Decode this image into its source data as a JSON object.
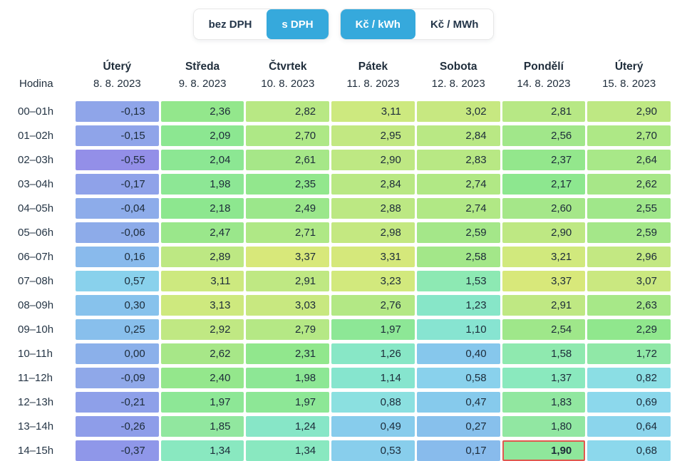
{
  "controls": {
    "vat_toggle": {
      "options": [
        {
          "label": "bez DPH",
          "active": false
        },
        {
          "label": "s DPH",
          "active": true
        }
      ]
    },
    "unit_toggle": {
      "options": [
        {
          "label": "Kč / kWh",
          "active": true
        },
        {
          "label": "Kč / MWh",
          "active": false
        }
      ]
    }
  },
  "colors": {
    "accent": "#36a9dc",
    "text": "#1f2d3b",
    "highlight_border": "#e0584e",
    "scale": [
      [
        -0.55,
        "#938fe8"
      ],
      [
        -0.3,
        "#8e9ae9"
      ],
      [
        -0.1,
        "#8fa7e9"
      ],
      [
        0.0,
        "#8bb0ea"
      ],
      [
        0.2,
        "#88bdec"
      ],
      [
        0.45,
        "#86c9ec"
      ],
      [
        0.7,
        "#8cd9ec"
      ],
      [
        0.9,
        "#8be1df"
      ],
      [
        1.15,
        "#86e5cd"
      ],
      [
        1.4,
        "#8ae9bc"
      ],
      [
        1.6,
        "#8fe9ae"
      ],
      [
        1.85,
        "#91e79f"
      ],
      [
        2.0,
        "#8ce794"
      ],
      [
        2.15,
        "#8ce78f"
      ],
      [
        2.4,
        "#94e78c"
      ],
      [
        2.55,
        "#a0e78a"
      ],
      [
        2.7,
        "#aee886"
      ],
      [
        2.85,
        "#bae884"
      ],
      [
        3.0,
        "#c6e881"
      ],
      [
        3.15,
        "#cfe97e"
      ],
      [
        3.4,
        "#d9e87a"
      ]
    ]
  },
  "table": {
    "corner_label": "Hodina",
    "columns": [
      {
        "day": "Úterý",
        "date": "8. 8. 2023"
      },
      {
        "day": "Středa",
        "date": "9. 8. 2023"
      },
      {
        "day": "Čtvrtek",
        "date": "10. 8. 2023"
      },
      {
        "day": "Pátek",
        "date": "11. 8. 2023"
      },
      {
        "day": "Sobota",
        "date": "12. 8. 2023"
      },
      {
        "day": "Pondělí",
        "date": "14. 8. 2023"
      },
      {
        "day": "Úterý",
        "date": "15. 8. 2023"
      }
    ],
    "rows": [
      {
        "hour": "00–01h",
        "values": [
          "-0,13",
          "2,36",
          "2,82",
          "3,11",
          "3,02",
          "2,81",
          "2,90"
        ]
      },
      {
        "hour": "01–02h",
        "values": [
          "-0,15",
          "2,09",
          "2,70",
          "2,95",
          "2,84",
          "2,56",
          "2,70"
        ]
      },
      {
        "hour": "02–03h",
        "values": [
          "-0,55",
          "2,04",
          "2,61",
          "2,90",
          "2,83",
          "2,37",
          "2,64"
        ]
      },
      {
        "hour": "03–04h",
        "values": [
          "-0,17",
          "1,98",
          "2,35",
          "2,84",
          "2,74",
          "2,17",
          "2,62"
        ]
      },
      {
        "hour": "04–05h",
        "values": [
          "-0,04",
          "2,18",
          "2,49",
          "2,88",
          "2,74",
          "2,60",
          "2,55"
        ]
      },
      {
        "hour": "05–06h",
        "values": [
          "-0,06",
          "2,47",
          "2,71",
          "2,98",
          "2,59",
          "2,90",
          "2,59"
        ]
      },
      {
        "hour": "06–07h",
        "values": [
          "0,16",
          "2,89",
          "3,37",
          "3,31",
          "2,58",
          "3,21",
          "2,96"
        ]
      },
      {
        "hour": "07–08h",
        "values": [
          "0,57",
          "3,11",
          "2,91",
          "3,23",
          "1,53",
          "3,37",
          "3,07"
        ]
      },
      {
        "hour": "08–09h",
        "values": [
          "0,30",
          "3,13",
          "3,03",
          "2,76",
          "1,23",
          "2,91",
          "2,63"
        ]
      },
      {
        "hour": "09–10h",
        "values": [
          "0,25",
          "2,92",
          "2,79",
          "1,97",
          "1,10",
          "2,54",
          "2,29"
        ]
      },
      {
        "hour": "10–11h",
        "values": [
          "0,00",
          "2,62",
          "2,31",
          "1,26",
          "0,40",
          "1,58",
          "1,72"
        ]
      },
      {
        "hour": "11–12h",
        "values": [
          "-0,09",
          "2,40",
          "1,98",
          "1,14",
          "0,58",
          "1,37",
          "0,82"
        ]
      },
      {
        "hour": "12–13h",
        "values": [
          "-0,21",
          "1,97",
          "1,97",
          "0,88",
          "0,47",
          "1,83",
          "0,69"
        ]
      },
      {
        "hour": "13–14h",
        "values": [
          "-0,26",
          "1,85",
          "1,24",
          "0,49",
          "0,27",
          "1,80",
          "0,64"
        ]
      },
      {
        "hour": "14–15h",
        "values": [
          "-0,37",
          "1,34",
          "1,34",
          "0,53",
          "0,17",
          "1,90",
          "0,68"
        ]
      }
    ],
    "highlight": {
      "row_index": 14,
      "col_index": 5
    }
  }
}
